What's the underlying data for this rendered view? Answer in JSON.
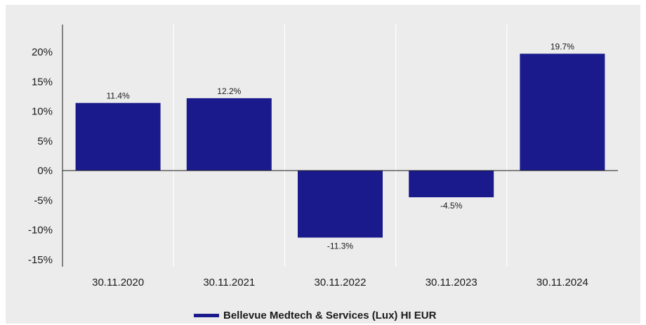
{
  "chart_data": {
    "type": "bar",
    "categories": [
      "30.11.2020",
      "30.11.2021",
      "30.11.2022",
      "30.11.2023",
      "30.11.2024"
    ],
    "series": [
      {
        "name": "Bellevue Medtech & Services (Lux) HI EUR",
        "values": [
          11.4,
          12.2,
          -11.3,
          -4.5,
          19.7
        ],
        "data_labels": [
          "11.4%",
          "12.2%",
          "-11.3%",
          "-4.5%",
          "19.7%"
        ],
        "color": "#1a1a8c"
      }
    ],
    "yticks": [
      "20%",
      "15%",
      "10%",
      "5%",
      "0%",
      "-5%",
      "-10%",
      "-15%"
    ],
    "ytick_values": [
      20,
      15,
      10,
      5,
      0,
      -5,
      -10,
      -15
    ],
    "ylim": [
      -15,
      20
    ],
    "grid": "vertical separators between categories",
    "legend_position": "bottom",
    "background": "#ececec",
    "title": "",
    "xlabel": "",
    "ylabel": ""
  }
}
